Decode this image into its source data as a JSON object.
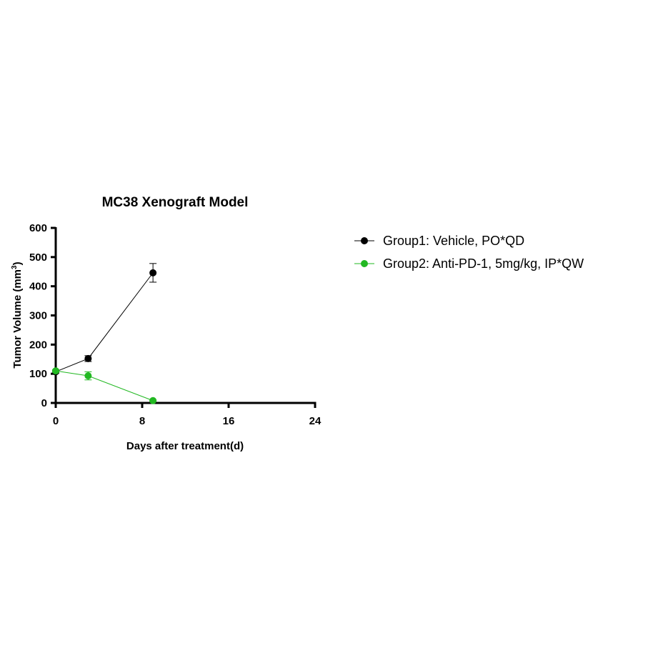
{
  "chart_data": {
    "type": "line",
    "title": "MC38  Xenograft Model",
    "xlabel": "Days after treatment(d)",
    "ylabel": "Tumor Volume  (mm",
    "ylabel_sup": "3",
    "ylabel_close": ")",
    "xlim": [
      0,
      24
    ],
    "ylim": [
      0,
      600
    ],
    "x_ticks": [
      0,
      8,
      16,
      24
    ],
    "y_ticks": [
      0,
      100,
      200,
      300,
      400,
      500,
      600
    ],
    "grid": false,
    "legend_position": "right",
    "series": [
      {
        "name": "Group1: Vehicle, PO*QD",
        "color": "#000000",
        "x": [
          0,
          3,
          9
        ],
        "y": [
          107,
          152,
          446
        ],
        "error": [
          5,
          10,
          32
        ]
      },
      {
        "name": "Group2: Anti-PD-1, 5mg/kg, IP*QW",
        "color": "#22b822",
        "x": [
          0,
          3,
          9
        ],
        "y": [
          110,
          93,
          8
        ],
        "error": [
          4,
          14,
          2
        ]
      }
    ]
  }
}
